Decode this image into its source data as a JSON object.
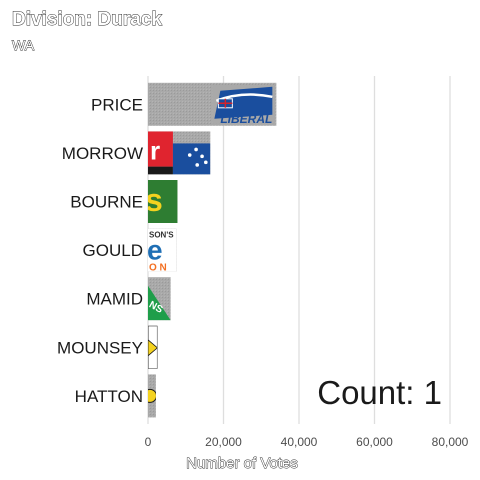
{
  "chart_data": {
    "type": "bar",
    "orientation": "horizontal",
    "title": "Division: Durack",
    "subtitle": "WA",
    "xlabel": "Number of Votes",
    "ylabel": "",
    "xlim": [
      0,
      80000
    ],
    "x_ticks": [
      0,
      20000,
      40000,
      60000,
      80000
    ],
    "x_tick_labels": [
      "0",
      "20,000",
      "40,000",
      "60,000",
      "80,000"
    ],
    "grid": true,
    "categories": [
      "PRICE",
      "MORROW",
      "BOURNE",
      "GOULD",
      "MAMID",
      "MOUNSEY",
      "HATTON"
    ],
    "values": [
      34000,
      16500,
      7800,
      7500,
      6000,
      2500,
      2100
    ],
    "annotation": "Count:  1",
    "logos": [
      {
        "candidate": "PRICE",
        "icon": "liberal-party-logo",
        "text": "LIBERAL",
        "colors": [
          "#1a4e9e",
          "#ffffff",
          "#d4232b"
        ]
      },
      {
        "candidate": "MORROW",
        "icon": "labor-party-logo",
        "text": "r",
        "colors": [
          "#e0242f",
          "#ffffff",
          "#1a4e9e"
        ]
      },
      {
        "candidate": "BOURNE",
        "icon": "greens-party-logo",
        "text": "s",
        "colors": [
          "#2e7d32",
          "#f4d21f"
        ]
      },
      {
        "candidate": "GOULD",
        "icon": "hanson-party-logo",
        "text": "e",
        "subtext": "SON'S",
        "subtext2": "O N",
        "colors": [
          "#1f6fb5",
          "#f36f21"
        ]
      },
      {
        "candidate": "MAMID",
        "icon": "nationals-party-logo",
        "text": "NS",
        "colors": [
          "#1f9e4a",
          "#ffffff"
        ]
      },
      {
        "candidate": "MOUNSEY",
        "icon": "minor-party-logo",
        "colors": [
          "#f4d21f",
          "#1a1a1a"
        ]
      },
      {
        "candidate": "HATTON",
        "icon": "uap-party-logo",
        "colors": [
          "#f4d21f",
          "#1a1a1a"
        ]
      }
    ]
  }
}
